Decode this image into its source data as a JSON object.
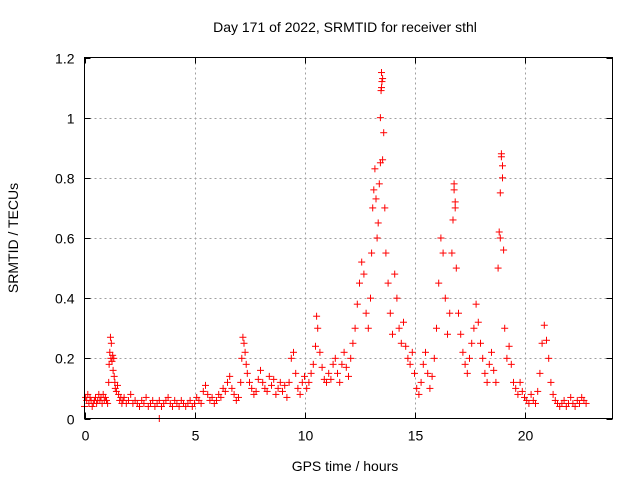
{
  "chart_data": {
    "type": "scatter",
    "title": "Day 171 of 2022, SRMTID for receiver sthl",
    "xlabel": "GPS time / hours",
    "ylabel": "SRMTID / TECUs",
    "xlim": [
      0,
      24
    ],
    "ylim": [
      0,
      1.2
    ],
    "xticks": [
      0,
      5,
      10,
      15,
      20
    ],
    "xtick_labels": [
      "0",
      "5",
      "10",
      "15",
      "20"
    ],
    "yticks": [
      0,
      0.2,
      0.4,
      0.6,
      0.8,
      1.0,
      1.2
    ],
    "ytick_labels": [
      "0",
      "0.2",
      "0.4",
      "0.6",
      "0.8",
      "1",
      "1.2"
    ],
    "grid": true,
    "marker": "+",
    "color": "#ff0000",
    "series": [
      {
        "name": "SRMTID",
        "x": [
          0.0,
          0.05,
          0.1,
          0.15,
          0.2,
          0.25,
          0.3,
          0.35,
          0.4,
          0.45,
          0.5,
          0.55,
          0.6,
          0.65,
          0.7,
          0.75,
          0.8,
          0.85,
          0.9,
          0.95,
          1.0,
          1.05,
          1.1,
          1.12,
          1.15,
          1.18,
          1.2,
          1.22,
          1.25,
          1.28,
          1.3,
          1.33,
          1.35,
          1.38,
          1.4,
          1.45,
          1.5,
          1.55,
          1.6,
          1.65,
          1.7,
          1.75,
          1.8,
          1.9,
          2.0,
          2.1,
          2.2,
          2.3,
          2.4,
          2.5,
          2.6,
          2.7,
          2.8,
          2.9,
          3.0,
          3.1,
          3.2,
          3.3,
          3.4,
          3.5,
          3.6,
          3.7,
          3.8,
          3.9,
          4.0,
          4.1,
          4.2,
          4.3,
          4.4,
          4.5,
          4.6,
          4.7,
          4.8,
          4.9,
          5.0,
          5.1,
          5.2,
          5.3,
          5.4,
          5.5,
          5.6,
          5.7,
          5.8,
          5.9,
          6.0,
          6.1,
          6.2,
          6.3,
          6.4,
          6.5,
          6.6,
          6.7,
          6.8,
          6.9,
          7.0,
          7.1,
          7.15,
          7.2,
          7.25,
          7.3,
          7.35,
          7.4,
          7.5,
          7.6,
          7.7,
          7.8,
          7.9,
          8.0,
          8.1,
          8.2,
          8.3,
          8.4,
          8.5,
          8.6,
          8.7,
          8.8,
          8.9,
          9.0,
          9.1,
          9.2,
          9.3,
          9.4,
          9.5,
          9.6,
          9.7,
          9.8,
          9.9,
          10.0,
          10.1,
          10.2,
          10.3,
          10.4,
          10.5,
          10.55,
          10.6,
          10.7,
          10.8,
          10.9,
          11.0,
          11.1,
          11.2,
          11.3,
          11.4,
          11.5,
          11.6,
          11.7,
          11.8,
          11.9,
          12.0,
          12.1,
          12.2,
          12.3,
          12.4,
          12.5,
          12.6,
          12.7,
          12.8,
          12.9,
          13.0,
          13.05,
          13.1,
          13.15,
          13.2,
          13.25,
          13.3,
          13.35,
          13.4,
          13.45,
          13.5,
          13.55,
          13.6,
          13.65,
          13.7,
          13.8,
          13.9,
          14.0,
          14.1,
          14.2,
          14.3,
          14.4,
          14.5,
          14.6,
          14.7,
          14.8,
          14.9,
          15.0,
          15.1,
          15.2,
          15.3,
          15.4,
          15.5,
          15.6,
          15.7,
          15.8,
          15.9,
          16.0,
          16.1,
          16.2,
          16.3,
          16.4,
          16.5,
          16.6,
          16.7,
          16.75,
          16.8,
          16.85,
          16.9,
          17.0,
          17.1,
          17.2,
          17.3,
          17.4,
          17.5,
          17.6,
          17.7,
          17.8,
          17.9,
          18.0,
          18.1,
          18.2,
          18.3,
          18.4,
          18.5,
          18.6,
          18.7,
          18.8,
          18.85,
          18.9,
          18.95,
          19.0,
          19.05,
          19.1,
          19.2,
          19.3,
          19.4,
          19.5,
          19.6,
          19.7,
          19.8,
          19.9,
          20.0,
          20.1,
          20.2,
          20.3,
          20.4,
          20.5,
          20.6,
          20.7,
          20.8,
          20.9,
          21.0,
          21.1,
          21.2,
          21.3,
          21.4,
          21.5,
          21.6,
          21.7,
          21.8,
          21.9,
          22.0,
          22.1,
          22.2,
          22.3,
          22.4,
          22.5,
          22.6,
          22.7,
          22.8,
          13.5,
          13.48,
          13.52,
          13.55,
          13.45,
          18.95,
          19.0,
          18.9,
          16.8,
          16.85,
          3.4
        ],
        "y": [
          0.04,
          0.07,
          0.06,
          0.08,
          0.05,
          0.07,
          0.06,
          0.04,
          0.05,
          0.06,
          0.07,
          0.05,
          0.06,
          0.08,
          0.06,
          0.07,
          0.05,
          0.08,
          0.06,
          0.07,
          0.06,
          0.05,
          0.12,
          0.18,
          0.22,
          0.27,
          0.2,
          0.25,
          0.19,
          0.21,
          0.16,
          0.2,
          0.14,
          0.12,
          0.1,
          0.09,
          0.11,
          0.08,
          0.06,
          0.07,
          0.05,
          0.06,
          0.07,
          0.05,
          0.06,
          0.08,
          0.05,
          0.06,
          0.05,
          0.04,
          0.06,
          0.05,
          0.07,
          0.04,
          0.05,
          0.06,
          0.04,
          0.05,
          0.06,
          0.04,
          0.05,
          0.06,
          0.07,
          0.05,
          0.04,
          0.06,
          0.05,
          0.04,
          0.06,
          0.05,
          0.04,
          0.05,
          0.06,
          0.04,
          0.05,
          0.07,
          0.06,
          0.05,
          0.09,
          0.11,
          0.08,
          0.06,
          0.07,
          0.05,
          0.06,
          0.08,
          0.07,
          0.1,
          0.09,
          0.12,
          0.14,
          0.1,
          0.08,
          0.06,
          0.07,
          0.12,
          0.2,
          0.27,
          0.25,
          0.22,
          0.18,
          0.15,
          0.12,
          0.1,
          0.08,
          0.09,
          0.13,
          0.16,
          0.12,
          0.1,
          0.09,
          0.14,
          0.11,
          0.13,
          0.08,
          0.1,
          0.12,
          0.09,
          0.11,
          0.07,
          0.12,
          0.2,
          0.22,
          0.15,
          0.1,
          0.08,
          0.12,
          0.14,
          0.1,
          0.12,
          0.15,
          0.18,
          0.24,
          0.34,
          0.3,
          0.22,
          0.17,
          0.13,
          0.12,
          0.15,
          0.13,
          0.18,
          0.2,
          0.15,
          0.12,
          0.18,
          0.22,
          0.17,
          0.14,
          0.2,
          0.25,
          0.3,
          0.38,
          0.45,
          0.52,
          0.48,
          0.35,
          0.3,
          0.4,
          0.55,
          0.7,
          0.76,
          0.83,
          0.73,
          0.6,
          0.65,
          0.78,
          0.85,
          1.1,
          1.13,
          0.95,
          0.7,
          0.55,
          0.45,
          0.35,
          0.28,
          0.48,
          0.4,
          0.3,
          0.25,
          0.32,
          0.24,
          0.2,
          0.18,
          0.22,
          0.15,
          0.1,
          0.08,
          0.12,
          0.18,
          0.22,
          0.15,
          0.1,
          0.14,
          0.2,
          0.3,
          0.45,
          0.6,
          0.55,
          0.4,
          0.28,
          0.35,
          0.55,
          0.66,
          0.76,
          0.7,
          0.5,
          0.35,
          0.28,
          0.22,
          0.18,
          0.15,
          0.2,
          0.25,
          0.3,
          0.38,
          0.32,
          0.25,
          0.2,
          0.15,
          0.12,
          0.18,
          0.22,
          0.16,
          0.12,
          0.5,
          0.62,
          0.75,
          0.87,
          0.8,
          0.56,
          0.3,
          0.2,
          0.24,
          0.18,
          0.12,
          0.1,
          0.08,
          0.12,
          0.09,
          0.07,
          0.06,
          0.05,
          0.08,
          0.06,
          0.05,
          0.09,
          0.15,
          0.25,
          0.31,
          0.26,
          0.2,
          0.12,
          0.08,
          0.06,
          0.05,
          0.04,
          0.05,
          0.06,
          0.04,
          0.05,
          0.07,
          0.05,
          0.04,
          0.06,
          0.05,
          0.07,
          0.06,
          0.05,
          1.15,
          1.09,
          1.12,
          0.86,
          1.0,
          0.88,
          0.84,
          0.6,
          0.78,
          0.72,
          0.0
        ]
      }
    ]
  }
}
